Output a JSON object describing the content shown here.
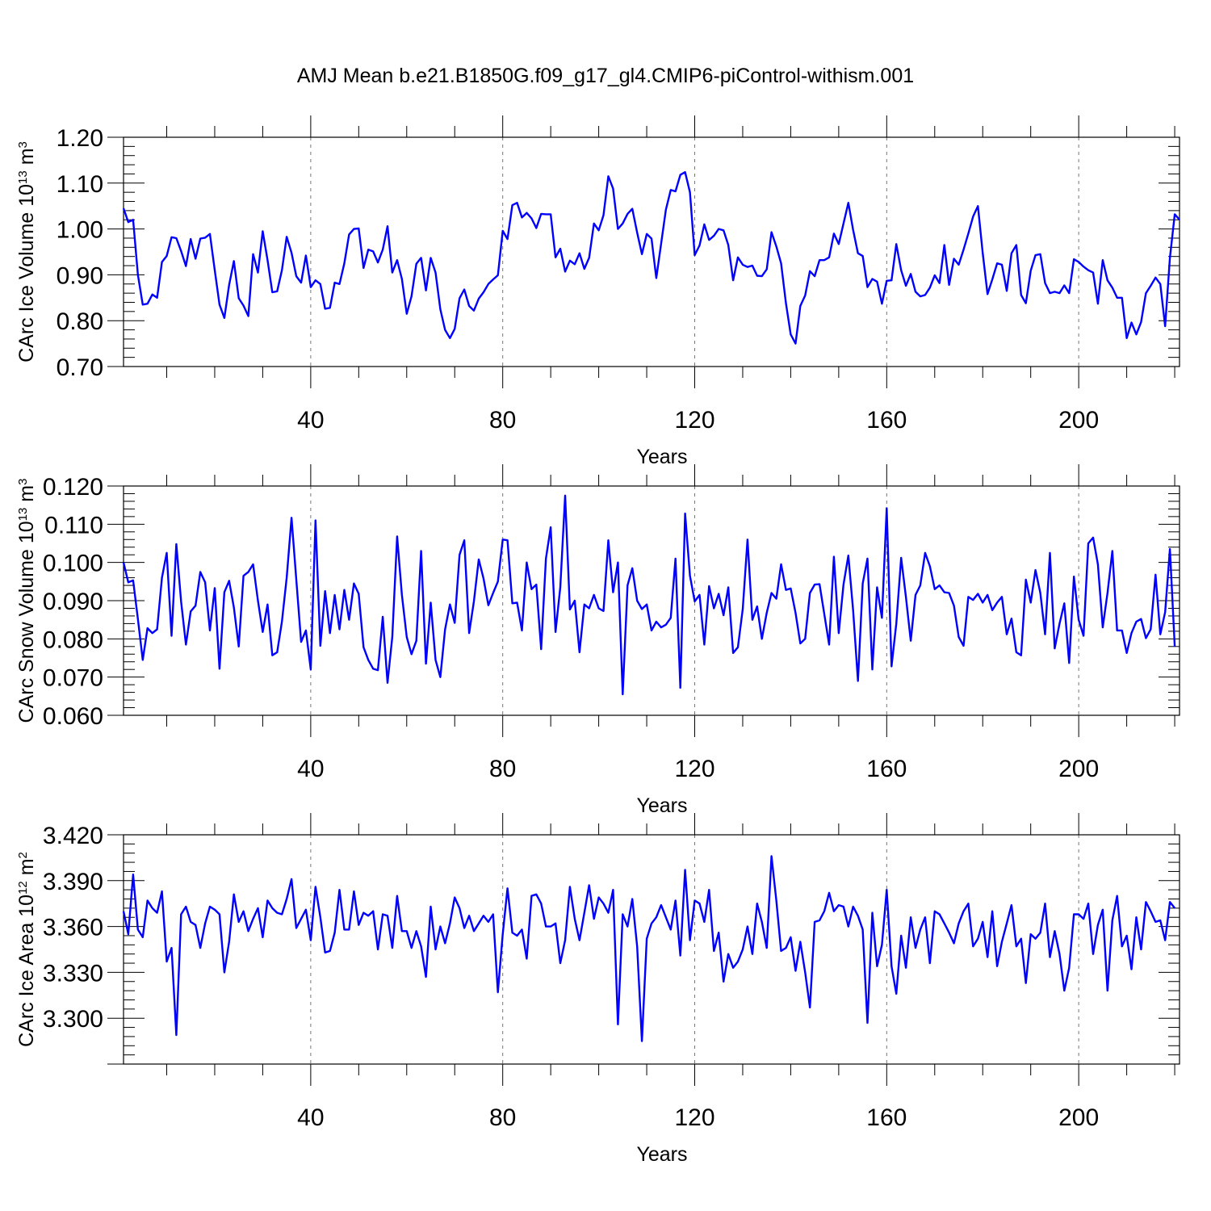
{
  "title": "AMJ Mean b.e21.B1850G.f09_g17_gl4.CMIP6-piControl-withism.001",
  "colors": {
    "series": "#0000ff",
    "axes": "#000000",
    "grid": "#777777"
  },
  "chart_data": [
    {
      "type": "line",
      "title": "",
      "xlabel": "Years",
      "ylabel": {
        "text": "CArc Ice Volume 10",
        "exp": "13",
        "unit": " m",
        "unit_exp": "3"
      },
      "xlim": [
        1,
        221
      ],
      "xticks": [
        40,
        80,
        120,
        160,
        200
      ],
      "xtick_labels": [
        "40",
        "80",
        "120",
        "160",
        "200"
      ],
      "ylim": [
        0.7,
        1.2
      ],
      "yticks": [
        0.7,
        0.8,
        0.9,
        1.0,
        1.1,
        1.2
      ],
      "ytick_labels": [
        "0.70",
        "0.80",
        "0.90",
        "1.00",
        "1.10",
        "1.20"
      ],
      "vertical_grid": "dashed at major x ticks",
      "series": [
        {
          "y": [
            1.045,
            1.015,
            1.02,
            0.9,
            0.835,
            0.837,
            0.857,
            0.85,
            0.928,
            0.941,
            0.982,
            0.98,
            0.952,
            0.919,
            0.978,
            0.935,
            0.979,
            0.981,
            0.989,
            0.91,
            0.835,
            0.806,
            0.878,
            0.93,
            0.849,
            0.833,
            0.81,
            0.945,
            0.905,
            0.995,
            0.932,
            0.862,
            0.864,
            0.91,
            0.983,
            0.948,
            0.897,
            0.883,
            0.942,
            0.873,
            0.888,
            0.88,
            0.826,
            0.828,
            0.883,
            0.88,
            0.925,
            0.988,
            1.0,
            1.001,
            0.915,
            0.955,
            0.951,
            0.927,
            0.955,
            1.006,
            0.905,
            0.932,
            0.891,
            0.815,
            0.853,
            0.924,
            0.937,
            0.866,
            0.937,
            0.905,
            0.825,
            0.78,
            0.762,
            0.782,
            0.849,
            0.868,
            0.832,
            0.822,
            0.848,
            0.862,
            0.88,
            0.89,
            0.899,
            0.996,
            0.978,
            1.052,
            1.057,
            1.025,
            1.035,
            1.023,
            1.002,
            1.033,
            1.032,
            1.032,
            0.938,
            0.957,
            0.907,
            0.931,
            0.923,
            0.947,
            0.913,
            0.937,
            1.012,
            0.997,
            1.03,
            1.115,
            1.088,
            1.0,
            1.012,
            1.033,
            1.044,
            0.992,
            0.945,
            0.989,
            0.979,
            0.893,
            0.968,
            1.042,
            1.085,
            1.082,
            1.118,
            1.124,
            1.08,
            0.943,
            0.964,
            1.01,
            0.976,
            0.985,
            1.0,
            0.997,
            0.965,
            0.888,
            0.938,
            0.922,
            0.917,
            0.92,
            0.898,
            0.897,
            0.912,
            0.993,
            0.962,
            0.925,
            0.838,
            0.77,
            0.75,
            0.832,
            0.855,
            0.908,
            0.897,
            0.932,
            0.932,
            0.938,
            0.99,
            0.967,
            1.012,
            1.057,
            0.998,
            0.947,
            0.941,
            0.873,
            0.891,
            0.885,
            0.837,
            0.887,
            0.888,
            0.967,
            0.91,
            0.876,
            0.902,
            0.863,
            0.853,
            0.856,
            0.872,
            0.899,
            0.882,
            0.965,
            0.878,
            0.935,
            0.922,
            0.955,
            0.99,
            1.027,
            1.05,
            0.948,
            0.858,
            0.89,
            0.925,
            0.922,
            0.865,
            0.947,
            0.965,
            0.856,
            0.838,
            0.909,
            0.943,
            0.945,
            0.882,
            0.86,
            0.863,
            0.86,
            0.877,
            0.86,
            0.934,
            0.928,
            0.918,
            0.91,
            0.905,
            0.837,
            0.932,
            0.888,
            0.872,
            0.85,
            0.85,
            0.762,
            0.796,
            0.77,
            0.797,
            0.86,
            0.876,
            0.894,
            0.88,
            0.788,
            0.937,
            1.032,
            1.02
          ]
        }
      ]
    },
    {
      "type": "line",
      "title": "",
      "xlabel": "Years",
      "ylabel": {
        "text": "CArc Snow Volume 10",
        "exp": "13",
        "unit": " m",
        "unit_exp": "3"
      },
      "xlim": [
        1,
        221
      ],
      "xticks": [
        40,
        80,
        120,
        160,
        200
      ],
      "xtick_labels": [
        "40",
        "80",
        "120",
        "160",
        "200"
      ],
      "ylim": [
        0.06,
        0.12
      ],
      "yticks": [
        0.06,
        0.07,
        0.08,
        0.09,
        0.1,
        0.11,
        0.12
      ],
      "ytick_labels": [
        "0.060",
        "0.070",
        "0.080",
        "0.090",
        "0.100",
        "0.110",
        "0.120"
      ],
      "vertical_grid": "dashed at major x ticks",
      "series": [
        {
          "y": [
            0.1,
            0.0948,
            0.0953,
            0.0852,
            0.0745,
            0.0828,
            0.0815,
            0.0825,
            0.096,
            0.1025,
            0.0808,
            0.1048,
            0.0898,
            0.0785,
            0.0872,
            0.0887,
            0.0975,
            0.0948,
            0.0822,
            0.0933,
            0.0722,
            0.0922,
            0.0952,
            0.0882,
            0.078,
            0.0965,
            0.0975,
            0.0995,
            0.09,
            0.0818,
            0.089,
            0.0757,
            0.0765,
            0.0845,
            0.096,
            0.1117,
            0.0955,
            0.0792,
            0.0822,
            0.072,
            0.111,
            0.0782,
            0.0925,
            0.0815,
            0.0915,
            0.0825,
            0.0928,
            0.085,
            0.0945,
            0.0918,
            0.0778,
            0.0745,
            0.0722,
            0.0718,
            0.0858,
            0.0685,
            0.0805,
            0.1068,
            0.0915,
            0.0805,
            0.076,
            0.0795,
            0.103,
            0.0735,
            0.0895,
            0.0745,
            0.07,
            0.0825,
            0.089,
            0.0842,
            0.102,
            0.1058,
            0.0815,
            0.0898,
            0.1008,
            0.0958,
            0.0888,
            0.092,
            0.095,
            0.106,
            0.1058,
            0.0893,
            0.0895,
            0.0822,
            0.1,
            0.093,
            0.0942,
            0.0773,
            0.101,
            0.1092,
            0.0818,
            0.0935,
            0.1175,
            0.0877,
            0.09,
            0.0765,
            0.089,
            0.088,
            0.0915,
            0.088,
            0.0873,
            0.1058,
            0.0922,
            0.1,
            0.0655,
            0.094,
            0.0985,
            0.09,
            0.0878,
            0.089,
            0.0822,
            0.0845,
            0.083,
            0.0837,
            0.0855,
            0.101,
            0.0672,
            0.1128,
            0.0965,
            0.0898,
            0.0915,
            0.0785,
            0.0938,
            0.088,
            0.0918,
            0.0862,
            0.0935,
            0.0763,
            0.0778,
            0.0878,
            0.106,
            0.085,
            0.0885,
            0.08,
            0.0868,
            0.092,
            0.0905,
            0.0995,
            0.0928,
            0.0932,
            0.0868,
            0.0788,
            0.08,
            0.092,
            0.0942,
            0.0943,
            0.0865,
            0.0785,
            0.1015,
            0.0815,
            0.0942,
            0.1018,
            0.0875,
            0.069,
            0.0945,
            0.101,
            0.072,
            0.0935,
            0.0855,
            0.1142,
            0.0728,
            0.084,
            0.1012,
            0.091,
            0.0795,
            0.0915,
            0.094,
            0.1025,
            0.099,
            0.093,
            0.094,
            0.0922,
            0.092,
            0.0887,
            0.0805,
            0.0782,
            0.091,
            0.0902,
            0.0918,
            0.0895,
            0.0915,
            0.0875,
            0.0895,
            0.091,
            0.0812,
            0.0853,
            0.0765,
            0.0757,
            0.0955,
            0.0895,
            0.098,
            0.092,
            0.0812,
            0.1025,
            0.0775,
            0.084,
            0.0893,
            0.0737,
            0.0963,
            0.085,
            0.0808,
            0.105,
            0.1065,
            0.0995,
            0.083,
            0.092,
            0.103,
            0.0822,
            0.0822,
            0.0763,
            0.0815,
            0.0845,
            0.0852,
            0.0802,
            0.0825,
            0.0968,
            0.0812,
            0.087,
            0.1035,
            0.078
          ]
        }
      ]
    },
    {
      "type": "line",
      "title": "",
      "xlabel": "Years",
      "ylabel": {
        "text": "CArc Ice Area 10",
        "exp": "12",
        "unit": " m",
        "unit_exp": "2"
      },
      "xlim": [
        1,
        221
      ],
      "xticks": [
        40,
        80,
        120,
        160,
        200
      ],
      "xtick_labels": [
        "40",
        "80",
        "120",
        "160",
        "200"
      ],
      "ylim": [
        3.27,
        3.42
      ],
      "yticks": [
        3.3,
        3.33,
        3.36,
        3.39,
        3.42
      ],
      "ytick_labels": [
        "3.300",
        "3.330",
        "3.360",
        "3.390",
        "3.420"
      ],
      "vertical_grid": "dashed at major x ticks",
      "series": [
        {
          "y": [
            3.37,
            3.355,
            3.394,
            3.358,
            3.353,
            3.377,
            3.372,
            3.369,
            3.383,
            3.337,
            3.346,
            3.289,
            3.368,
            3.373,
            3.363,
            3.361,
            3.346,
            3.362,
            3.373,
            3.371,
            3.368,
            3.33,
            3.35,
            3.381,
            3.363,
            3.37,
            3.357,
            3.365,
            3.372,
            3.353,
            3.377,
            3.372,
            3.369,
            3.368,
            3.378,
            3.391,
            3.359,
            3.365,
            3.371,
            3.351,
            3.386,
            3.366,
            3.343,
            3.344,
            3.356,
            3.384,
            3.358,
            3.358,
            3.383,
            3.361,
            3.369,
            3.367,
            3.37,
            3.345,
            3.368,
            3.367,
            3.346,
            3.38,
            3.357,
            3.357,
            3.346,
            3.357,
            3.347,
            3.327,
            3.373,
            3.345,
            3.36,
            3.349,
            3.362,
            3.379,
            3.372,
            3.359,
            3.367,
            3.357,
            3.362,
            3.367,
            3.363,
            3.368,
            3.317,
            3.355,
            3.385,
            3.356,
            3.354,
            3.358,
            3.339,
            3.38,
            3.381,
            3.375,
            3.36,
            3.36,
            3.362,
            3.336,
            3.351,
            3.386,
            3.365,
            3.351,
            3.369,
            3.387,
            3.365,
            3.379,
            3.375,
            3.369,
            3.384,
            3.296,
            3.368,
            3.36,
            3.378,
            3.347,
            3.285,
            3.352,
            3.362,
            3.366,
            3.374,
            3.366,
            3.358,
            3.377,
            3.341,
            3.397,
            3.351,
            3.377,
            3.375,
            3.363,
            3.384,
            3.344,
            3.356,
            3.324,
            3.342,
            3.333,
            3.337,
            3.345,
            3.36,
            3.342,
            3.375,
            3.363,
            3.346,
            3.406,
            3.377,
            3.344,
            3.346,
            3.353,
            3.331,
            3.35,
            3.33,
            3.307,
            3.363,
            3.364,
            3.37,
            3.382,
            3.37,
            3.374,
            3.373,
            3.36,
            3.373,
            3.367,
            3.358,
            3.297,
            3.369,
            3.334,
            3.348,
            3.384,
            3.334,
            3.316,
            3.354,
            3.333,
            3.366,
            3.346,
            3.358,
            3.366,
            3.336,
            3.37,
            3.368,
            3.362,
            3.356,
            3.349,
            3.362,
            3.37,
            3.375,
            3.347,
            3.352,
            3.363,
            3.34,
            3.37,
            3.334,
            3.35,
            3.362,
            3.374,
            3.347,
            3.352,
            3.323,
            3.355,
            3.352,
            3.356,
            3.375,
            3.34,
            3.357,
            3.342,
            3.318,
            3.333,
            3.368,
            3.368,
            3.365,
            3.375,
            3.342,
            3.361,
            3.371,
            3.318,
            3.364,
            3.38,
            3.347,
            3.354,
            3.332,
            3.366,
            3.345,
            3.376,
            3.37,
            3.363,
            3.364,
            3.351,
            3.376,
            3.372
          ]
        }
      ]
    }
  ]
}
